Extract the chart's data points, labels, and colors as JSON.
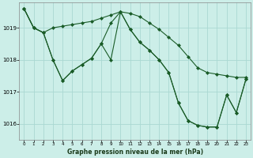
{
  "xlabel": "Graphe pression niveau de la mer (hPa)",
  "x_ticks": [
    0,
    1,
    2,
    3,
    4,
    5,
    6,
    7,
    8,
    9,
    10,
    11,
    12,
    13,
    14,
    15,
    16,
    17,
    18,
    19,
    20,
    21,
    22,
    23
  ],
  "ylim": [
    1015.5,
    1019.8
  ],
  "yticks": [
    1016,
    1017,
    1018,
    1019
  ],
  "bg_color": "#cceee8",
  "grid_color": "#aad8d2",
  "line_color": "#1a5c28",
  "series1": [
    1019.6,
    1019.0,
    1018.85,
    1019.0,
    1019.05,
    1019.1,
    1019.15,
    1019.2,
    1019.3,
    1019.4,
    1019.5,
    1019.45,
    1019.35,
    1019.15,
    1018.95,
    1018.7,
    1018.45,
    1018.1,
    1017.75,
    1017.6,
    1017.55,
    1017.5,
    1017.45,
    1017.45
  ],
  "series2": [
    1019.6,
    1019.0,
    1018.85,
    1018.0,
    1017.35,
    1017.65,
    1017.85,
    1018.05,
    1018.5,
    1019.15,
    1019.5,
    1018.95,
    1018.55,
    1018.3,
    1018.0,
    1017.6,
    1016.65,
    1016.1,
    1015.95,
    1015.9,
    1015.9,
    1016.9,
    1016.35,
    1017.4
  ],
  "series3": [
    1019.6,
    1019.0,
    1018.85,
    1018.0,
    1017.35,
    1017.65,
    1017.85,
    1018.05,
    1018.5,
    1018.0,
    1019.5,
    1018.95,
    1018.55,
    1018.3,
    1018.0,
    1017.6,
    1016.65,
    1016.1,
    1015.95,
    1015.9,
    1015.9,
    1016.9,
    1016.35,
    1017.4
  ],
  "marker": "D",
  "marker_size": 2,
  "line_width": 0.8
}
